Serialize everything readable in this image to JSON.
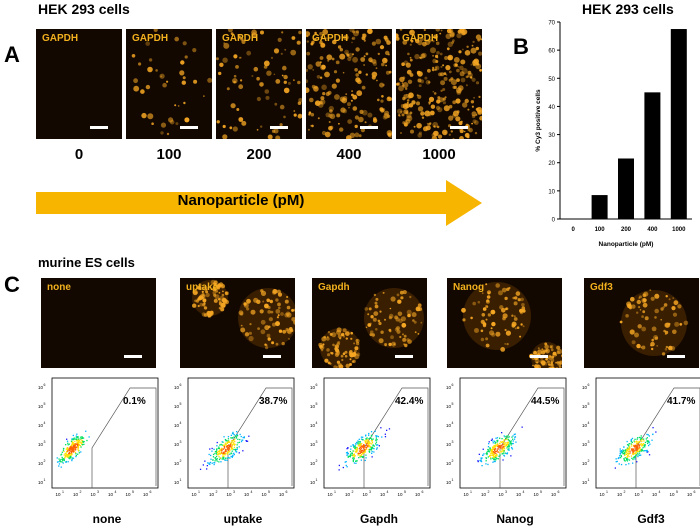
{
  "panelA": {
    "letter": "A",
    "title": "HEK 293 cells",
    "image_label": "GAPDH",
    "concentrations": [
      "0",
      "100",
      "200",
      "400",
      "1000"
    ],
    "arrow_label": "Nanoparticle (pM)",
    "arrow_color": "#f7b500"
  },
  "panelB": {
    "letter": "B",
    "title": "HEK 293 cells"
  },
  "chart_data": {
    "type": "bar",
    "categories": [
      "0",
      "100",
      "200",
      "400",
      "1000"
    ],
    "values": [
      0,
      8.5,
      21.5,
      45,
      67.5
    ],
    "ylabel": "% Cy3 positive cells",
    "xlabel": "Nanoparticle (pM)",
    "ylim": [
      0,
      70
    ],
    "yticks": [
      "0",
      "10",
      "20",
      "30",
      "40",
      "50",
      "60",
      "70"
    ],
    "bar_color": "#000000"
  },
  "panelC": {
    "letter": "C",
    "title": "murine ES cells",
    "images": [
      {
        "label": "none",
        "cells": 0
      },
      {
        "label": "uptake",
        "cells": 2
      },
      {
        "label": "Gapdh",
        "cells": 2
      },
      {
        "label": "Nanog",
        "cells": 2
      },
      {
        "label": "Gdf3",
        "cells": 1
      }
    ],
    "flow": [
      {
        "name": "none",
        "pct": "0.1%"
      },
      {
        "name": "uptake",
        "pct": "38.7%"
      },
      {
        "name": "Gapdh",
        "pct": "42.4%"
      },
      {
        "name": "Nanog",
        "pct": "44.5%"
      },
      {
        "name": "Gdf3",
        "pct": "41.7%"
      }
    ],
    "axis_ticks": [
      "10",
      "10",
      "10",
      "10",
      "10",
      "10"
    ],
    "axis_exps": [
      "1",
      "2",
      "3",
      "4",
      "5",
      "6"
    ]
  }
}
